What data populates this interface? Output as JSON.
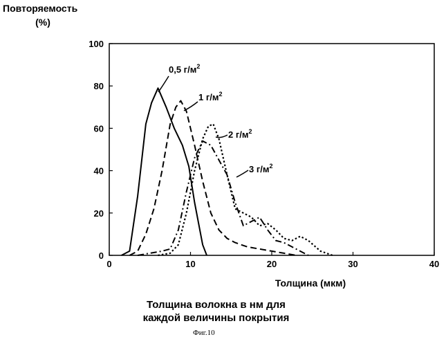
{
  "chart_data": {
    "type": "line",
    "ylabel_line1": "Повторяемость",
    "ylabel_line2": "(%)",
    "xlabel": "Толщина (мкм)",
    "xlim": [
      0,
      40
    ],
    "ylim": [
      0,
      100
    ],
    "xticks": [
      0,
      10,
      20,
      30,
      40
    ],
    "yticks": [
      0,
      20,
      40,
      60,
      80,
      100
    ],
    "grid": false,
    "series": [
      {
        "name": "0,5 г/м",
        "sup": "2",
        "style": "solid",
        "x": [
          1.5,
          2.5,
          3.5,
          4.5,
          5.2,
          6.0,
          7.0,
          8.0,
          9.0,
          9.8,
          10.5,
          11.5,
          12.0
        ],
        "y": [
          0,
          2,
          28,
          62,
          72,
          79,
          70,
          60,
          52,
          42,
          25,
          5,
          0
        ]
      },
      {
        "name": "1 г/м",
        "sup": "2",
        "style": "dashed",
        "x": [
          2.5,
          3.5,
          4.5,
          5.5,
          6.5,
          7.5,
          8.2,
          8.8,
          9.5,
          10.5,
          11.5,
          12.5,
          13.5,
          14.5,
          15.5,
          17.0,
          18.5,
          20.0,
          21.5,
          23.0
        ],
        "y": [
          0,
          2,
          10,
          22,
          40,
          62,
          70,
          73,
          68,
          52,
          35,
          20,
          12,
          8,
          6,
          4,
          3,
          2,
          1,
          0
        ]
      },
      {
        "name": "2 г/м",
        "sup": "2",
        "style": "dotted",
        "x": [
          6.0,
          7.5,
          8.5,
          9.5,
          10.5,
          11.5,
          12.2,
          12.8,
          13.5,
          14.5,
          15.5,
          16.5,
          17.5,
          18.5,
          19.5,
          20.5,
          21.5,
          22.5,
          23.5,
          24.5,
          26.0,
          27.5
        ],
        "y": [
          0,
          1,
          5,
          20,
          40,
          55,
          61,
          62,
          55,
          38,
          22,
          20,
          18,
          14,
          15,
          12,
          8,
          7,
          9,
          7,
          2,
          0
        ]
      },
      {
        "name": "3 г/м",
        "sup": "2",
        "style": "dashdot",
        "x": [
          3.5,
          5.0,
          6.5,
          7.5,
          8.5,
          9.5,
          10.5,
          11.5,
          12.5,
          13.5,
          14.5,
          15.5,
          16.5,
          17.5,
          18.5,
          19.5,
          20.5,
          21.5,
          22.5,
          23.5,
          24.5
        ],
        "y": [
          0,
          1,
          2,
          3,
          12,
          30,
          46,
          54,
          52,
          45,
          38,
          25,
          14,
          16,
          18,
          12,
          7,
          6,
          4,
          2,
          0
        ]
      }
    ]
  },
  "caption": {
    "line1": "Толщина волокна в нм для",
    "line2": "каждой величины покрытия",
    "figure": "Фиг.10"
  }
}
